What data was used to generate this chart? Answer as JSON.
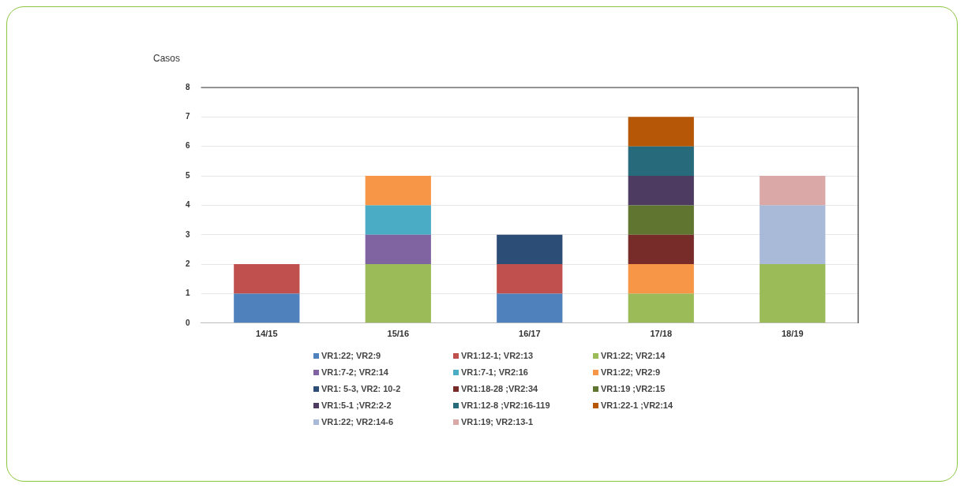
{
  "chart_data": {
    "type": "bar",
    "stacked": true,
    "ylabel": "Casos",
    "categories": [
      "14/15",
      "15/16",
      "16/17",
      "17/18",
      "18/19"
    ],
    "ylim": [
      0,
      8
    ],
    "yticks": [
      0,
      1,
      2,
      3,
      4,
      5,
      6,
      7,
      8
    ],
    "grid": "y",
    "legend": "bottom",
    "series": [
      {
        "name": "VR1:22; VR2:9",
        "color": "#4f81bd",
        "values": [
          1,
          null,
          1,
          null,
          null
        ]
      },
      {
        "name": "VR1:12-1; VR2:13",
        "color": "#c0504d",
        "values": [
          1,
          null,
          1,
          null,
          null
        ]
      },
      {
        "name": "VR1:22; VR2:14",
        "color": "#9bbb59",
        "values": [
          null,
          2,
          null,
          1,
          2
        ]
      },
      {
        "name": "VR1:7-2; VR2:14",
        "color": "#8064a2",
        "values": [
          null,
          1,
          null,
          null,
          null
        ]
      },
      {
        "name": "VR1:7-1; VR2:16",
        "color": "#4bacc6",
        "values": [
          null,
          1,
          null,
          null,
          null
        ]
      },
      {
        "name": "VR1:22; VR2:9",
        "color": "#f79646",
        "values": [
          null,
          1,
          null,
          1,
          null
        ]
      },
      {
        "name": "VR1: 5-3, VR2: 10-2",
        "color": "#2c4d75",
        "values": [
          null,
          null,
          1,
          null,
          null
        ]
      },
      {
        "name": "VR1:18-28 ;VR2:34",
        "color": "#772c2a",
        "values": [
          null,
          null,
          null,
          1,
          null
        ]
      },
      {
        "name": "VR1:19 ;VR2:15",
        "color": "#5f7530",
        "values": [
          null,
          null,
          null,
          1,
          null
        ]
      },
      {
        "name": "VR1:5-1 ;VR2:2-2",
        "color": "#4d3b62",
        "values": [
          null,
          null,
          null,
          1,
          null
        ]
      },
      {
        "name": "VR1:12-8 ;VR2:16-119",
        "color": "#276a7c",
        "values": [
          null,
          null,
          null,
          1,
          null
        ]
      },
      {
        "name": "VR1:22-1 ;VR2:14",
        "color": "#b65708",
        "values": [
          null,
          null,
          null,
          1,
          null
        ]
      },
      {
        "name": "VR1:22; VR2:14-6",
        "color": "#a9b9d8",
        "values": [
          null,
          null,
          null,
          null,
          2
        ]
      },
      {
        "name": "VR1:19; VR2:13-1",
        "color": "#d9a8a7",
        "values": [
          null,
          null,
          null,
          null,
          1
        ]
      }
    ]
  }
}
